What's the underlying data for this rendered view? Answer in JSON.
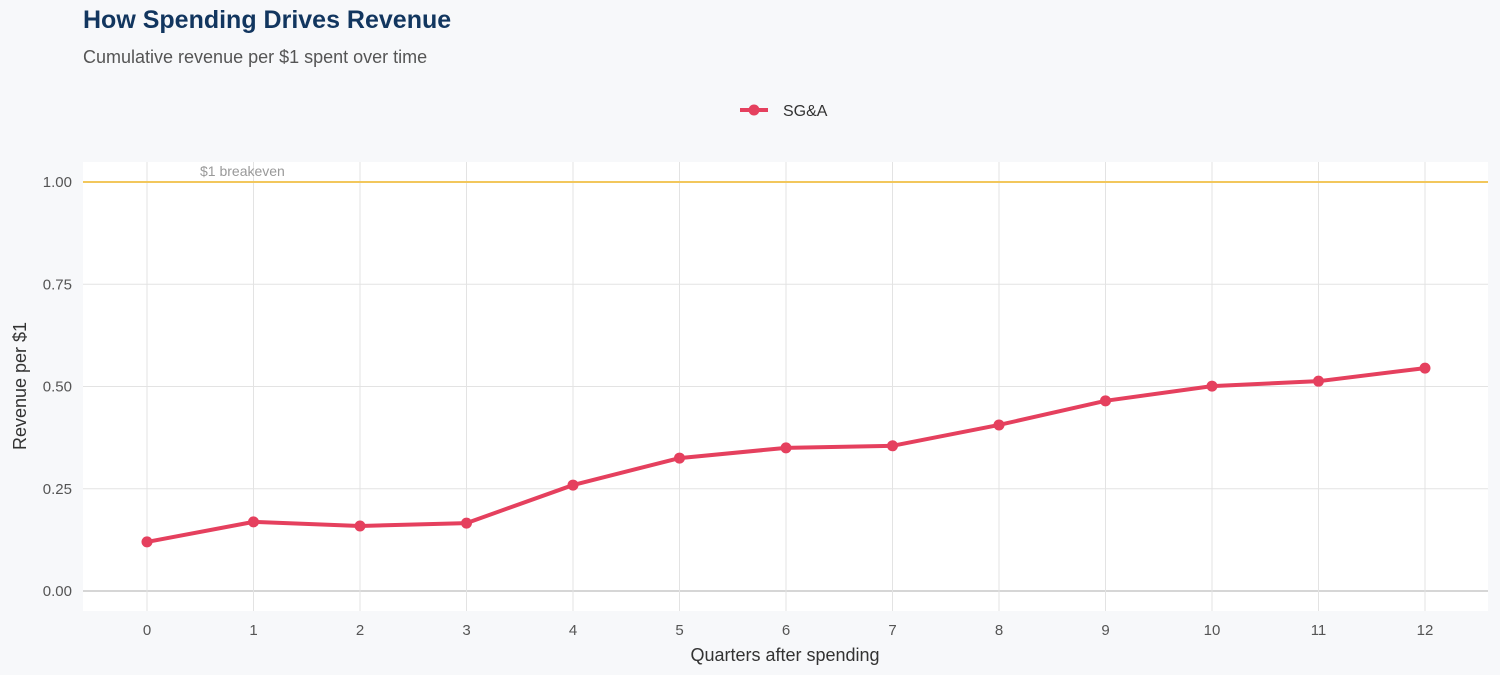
{
  "chart_data": {
    "type": "line",
    "title": "How Spending Drives Revenue",
    "subtitle": "Cumulative revenue per $1 spent over time",
    "xlabel": "Quarters after spending",
    "ylabel": "Revenue per $1",
    "x": [
      0,
      1,
      2,
      3,
      4,
      5,
      6,
      7,
      8,
      9,
      10,
      11,
      12
    ],
    "xticks": [
      "0",
      "1",
      "2",
      "3",
      "4",
      "5",
      "6",
      "7",
      "8",
      "9",
      "10",
      "11",
      "12"
    ],
    "yticks": [
      "0.00",
      "0.25",
      "0.50",
      "0.75",
      "1.00"
    ],
    "ylim": [
      0,
      1.05
    ],
    "xlim": [
      -0.6,
      12.6
    ],
    "grid": true,
    "legend_position": "top",
    "series": [
      {
        "name": "SG&A",
        "color": "#e5405e",
        "values": [
          0.12,
          0.169,
          0.159,
          0.166,
          0.259,
          0.325,
          0.35,
          0.355,
          0.406,
          0.465,
          0.501,
          0.513,
          0.545
        ]
      }
    ],
    "reference_line": {
      "y": 1.0,
      "label": "$1 breakeven",
      "color": "#f2c75c"
    }
  }
}
